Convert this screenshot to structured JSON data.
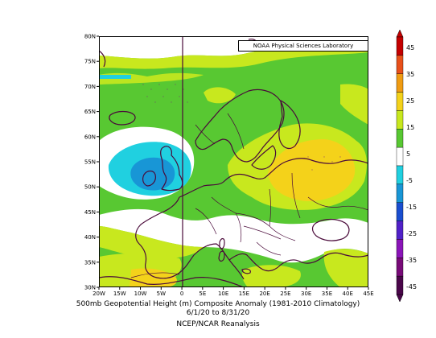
{
  "credit": "NOAA Physical Sciences Laboratory",
  "caption": {
    "line1": "500mb Geopotential Height (m) Composite Anomaly (1981-2010 Climatology)",
    "line2": "6/1/20 to 8/31/20",
    "line3": "NCEP/NCAR Reanalysis"
  },
  "lat_ticks": [
    "80N",
    "75N",
    "70N",
    "65N",
    "60N",
    "55N",
    "50N",
    "45N",
    "40N",
    "35N",
    "30N"
  ],
  "lon_ticks": [
    "20W",
    "15W",
    "10W",
    "5W",
    "0",
    "5E",
    "10E",
    "15E",
    "20E",
    "25E",
    "30E",
    "35E",
    "40E",
    "45E"
  ],
  "colorbar": {
    "labels": [
      "45",
      "35",
      "25",
      "15",
      "5",
      "-5",
      "-15",
      "-25",
      "-35",
      "-45"
    ],
    "colors": [
      "#c40000",
      "#e8501a",
      "#f09c12",
      "#f4d21a",
      "#c8e81e",
      "#58c832",
      "#ffffff",
      "#20d0e0",
      "#1896d6",
      "#1a4ed0",
      "#5020c8",
      "#8a14b8",
      "#780a78",
      "#4a064a"
    ]
  },
  "colors": {
    "green": "#58c832",
    "light_green": "#c8e81e",
    "yellow": "#f4d21a",
    "white": "#ffffff",
    "cyan": "#20d0e0",
    "blue": "#1896d6",
    "coast": "#4a0a3a"
  }
}
